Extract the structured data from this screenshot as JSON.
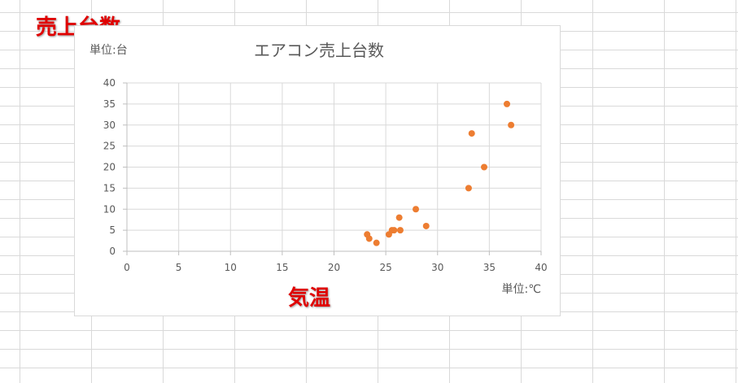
{
  "annotations": {
    "y_label": "売上台数",
    "x_label": "気温"
  },
  "chart_data": {
    "type": "scatter",
    "title": "エアコン売上台数",
    "ylabel": "単位:台",
    "xlabel": "単位:℃",
    "xlim": [
      0,
      40
    ],
    "ylim": [
      0,
      40
    ],
    "x_ticks": [
      "0",
      "5",
      "10",
      "15",
      "20",
      "25",
      "30",
      "35",
      "40"
    ],
    "y_ticks": [
      "0",
      "5",
      "10",
      "15",
      "20",
      "25",
      "30",
      "35",
      "40"
    ],
    "grid": true,
    "legend": "none",
    "marker_color": "#ed7d31",
    "points": [
      {
        "x": 23.2,
        "y": 4
      },
      {
        "x": 23.4,
        "y": 3
      },
      {
        "x": 24.1,
        "y": 2
      },
      {
        "x": 25.3,
        "y": 4
      },
      {
        "x": 25.6,
        "y": 5
      },
      {
        "x": 25.8,
        "y": 5
      },
      {
        "x": 26.3,
        "y": 8
      },
      {
        "x": 26.4,
        "y": 5
      },
      {
        "x": 27.9,
        "y": 10
      },
      {
        "x": 28.9,
        "y": 6
      },
      {
        "x": 33.0,
        "y": 15
      },
      {
        "x": 33.3,
        "y": 28
      },
      {
        "x": 34.5,
        "y": 20
      },
      {
        "x": 36.7,
        "y": 35
      },
      {
        "x": 37.1,
        "y": 30
      }
    ]
  }
}
